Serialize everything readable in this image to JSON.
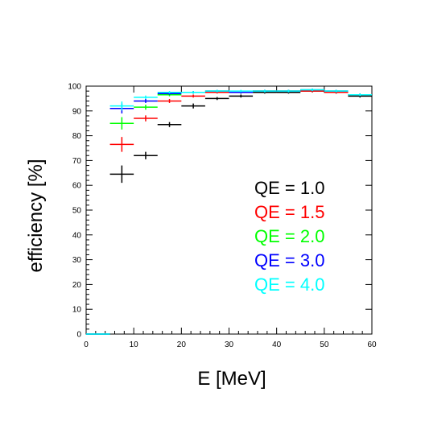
{
  "chart_data": {
    "type": "scatter",
    "xlabel": "E [MeV]",
    "ylabel": "efficiency [%]",
    "xlim": [
      0,
      60
    ],
    "ylim": [
      0,
      100
    ],
    "xticks": [
      0,
      10,
      20,
      30,
      40,
      50,
      60
    ],
    "yticks": [
      0,
      10,
      20,
      30,
      40,
      50,
      60,
      70,
      80,
      90,
      100
    ],
    "grid": false,
    "legend_placement": "center-right",
    "series": [
      {
        "name": "QE = 1.0",
        "color": "#000000",
        "points": [
          {
            "x": 2.5,
            "y": 0,
            "xerr": 2.5,
            "yerr": 0
          },
          {
            "x": 7.5,
            "y": 64.5,
            "xerr": 2.5,
            "yerr": 3.5
          },
          {
            "x": 12.5,
            "y": 72,
            "xerr": 2.5,
            "yerr": 1.5
          },
          {
            "x": 17.5,
            "y": 84.5,
            "xerr": 2.5,
            "yerr": 1.0
          },
          {
            "x": 22.5,
            "y": 92,
            "xerr": 2.5,
            "yerr": 1.0
          },
          {
            "x": 27.5,
            "y": 95,
            "xerr": 2.5,
            "yerr": 0.6
          },
          {
            "x": 32.5,
            "y": 96,
            "xerr": 2.5,
            "yerr": 0.6
          },
          {
            "x": 37.5,
            "y": 97.5,
            "xerr": 2.5,
            "yerr": 0.5
          },
          {
            "x": 42.5,
            "y": 97.5,
            "xerr": 2.5,
            "yerr": 0.5
          },
          {
            "x": 47.5,
            "y": 98,
            "xerr": 2.5,
            "yerr": 0.5
          },
          {
            "x": 52.5,
            "y": 97.5,
            "xerr": 2.5,
            "yerr": 0.5
          },
          {
            "x": 57.5,
            "y": 96,
            "xerr": 2.5,
            "yerr": 0.6
          }
        ]
      },
      {
        "name": "QE = 1.5",
        "color": "#ff0000",
        "points": [
          {
            "x": 2.5,
            "y": 0,
            "xerr": 2.5,
            "yerr": 0
          },
          {
            "x": 7.5,
            "y": 76.5,
            "xerr": 2.5,
            "yerr": 3.0
          },
          {
            "x": 12.5,
            "y": 87,
            "xerr": 2.5,
            "yerr": 1.2
          },
          {
            "x": 17.5,
            "y": 94,
            "xerr": 2.5,
            "yerr": 0.8
          },
          {
            "x": 22.5,
            "y": 96,
            "xerr": 2.5,
            "yerr": 0.6
          },
          {
            "x": 27.5,
            "y": 97.5,
            "xerr": 2.5,
            "yerr": 0.5
          },
          {
            "x": 32.5,
            "y": 97.5,
            "xerr": 2.5,
            "yerr": 0.5
          },
          {
            "x": 37.5,
            "y": 98,
            "xerr": 2.5,
            "yerr": 0.5
          },
          {
            "x": 42.5,
            "y": 98,
            "xerr": 2.5,
            "yerr": 0.5
          },
          {
            "x": 47.5,
            "y": 98,
            "xerr": 2.5,
            "yerr": 0.5
          },
          {
            "x": 52.5,
            "y": 97.5,
            "xerr": 2.5,
            "yerr": 0.5
          },
          {
            "x": 57.5,
            "y": 96.5,
            "xerr": 2.5,
            "yerr": 0.5
          }
        ]
      },
      {
        "name": "QE = 2.0",
        "color": "#00ff00",
        "points": [
          {
            "x": 2.5,
            "y": 0,
            "xerr": 2.5,
            "yerr": 0
          },
          {
            "x": 7.5,
            "y": 85,
            "xerr": 2.5,
            "yerr": 2.5
          },
          {
            "x": 12.5,
            "y": 91.5,
            "xerr": 2.5,
            "yerr": 1.0
          },
          {
            "x": 17.5,
            "y": 96.5,
            "xerr": 2.5,
            "yerr": 0.6
          },
          {
            "x": 22.5,
            "y": 97.5,
            "xerr": 2.5,
            "yerr": 0.5
          },
          {
            "x": 27.5,
            "y": 98,
            "xerr": 2.5,
            "yerr": 0.5
          },
          {
            "x": 32.5,
            "y": 97.5,
            "xerr": 2.5,
            "yerr": 0.5
          },
          {
            "x": 37.5,
            "y": 98,
            "xerr": 2.5,
            "yerr": 0.5
          },
          {
            "x": 42.5,
            "y": 98,
            "xerr": 2.5,
            "yerr": 0.5
          },
          {
            "x": 47.5,
            "y": 98.5,
            "xerr": 2.5,
            "yerr": 0.5
          },
          {
            "x": 52.5,
            "y": 98,
            "xerr": 2.5,
            "yerr": 0.5
          },
          {
            "x": 57.5,
            "y": 96.5,
            "xerr": 2.5,
            "yerr": 0.5
          }
        ]
      },
      {
        "name": "QE = 3.0",
        "color": "#0000ff",
        "points": [
          {
            "x": 2.5,
            "y": 0,
            "xerr": 2.5,
            "yerr": 0
          },
          {
            "x": 7.5,
            "y": 91,
            "xerr": 2.5,
            "yerr": 2.0
          },
          {
            "x": 12.5,
            "y": 94,
            "xerr": 2.5,
            "yerr": 0.8
          },
          {
            "x": 17.5,
            "y": 97,
            "xerr": 2.5,
            "yerr": 0.5
          },
          {
            "x": 22.5,
            "y": 97.5,
            "xerr": 2.5,
            "yerr": 0.5
          },
          {
            "x": 27.5,
            "y": 98,
            "xerr": 2.5,
            "yerr": 0.5
          },
          {
            "x": 32.5,
            "y": 97.5,
            "xerr": 2.5,
            "yerr": 0.5
          },
          {
            "x": 37.5,
            "y": 98,
            "xerr": 2.5,
            "yerr": 0.5
          },
          {
            "x": 42.5,
            "y": 98,
            "xerr": 2.5,
            "yerr": 0.5
          },
          {
            "x": 47.5,
            "y": 98.5,
            "xerr": 2.5,
            "yerr": 0.5
          },
          {
            "x": 52.5,
            "y": 98,
            "xerr": 2.5,
            "yerr": 0.5
          },
          {
            "x": 57.5,
            "y": 96.5,
            "xerr": 2.5,
            "yerr": 0.5
          }
        ]
      },
      {
        "name": "QE = 4.0",
        "color": "#00ffff",
        "points": [
          {
            "x": 2.5,
            "y": 0,
            "xerr": 2.5,
            "yerr": 0
          },
          {
            "x": 7.5,
            "y": 92,
            "xerr": 2.5,
            "yerr": 1.8
          },
          {
            "x": 12.5,
            "y": 95.5,
            "xerr": 2.5,
            "yerr": 0.7
          },
          {
            "x": 17.5,
            "y": 97.5,
            "xerr": 2.5,
            "yerr": 0.5
          },
          {
            "x": 22.5,
            "y": 97.5,
            "xerr": 2.5,
            "yerr": 0.5
          },
          {
            "x": 27.5,
            "y": 98,
            "xerr": 2.5,
            "yerr": 0.5
          },
          {
            "x": 32.5,
            "y": 98,
            "xerr": 2.5,
            "yerr": 0.5
          },
          {
            "x": 37.5,
            "y": 98,
            "xerr": 2.5,
            "yerr": 0.5
          },
          {
            "x": 42.5,
            "y": 98,
            "xerr": 2.5,
            "yerr": 0.5
          },
          {
            "x": 47.5,
            "y": 98.5,
            "xerr": 2.5,
            "yerr": 0.5
          },
          {
            "x": 52.5,
            "y": 98,
            "xerr": 2.5,
            "yerr": 0.5
          },
          {
            "x": 57.5,
            "y": 96.5,
            "xerr": 2.5,
            "yerr": 0.5
          }
        ]
      }
    ]
  }
}
